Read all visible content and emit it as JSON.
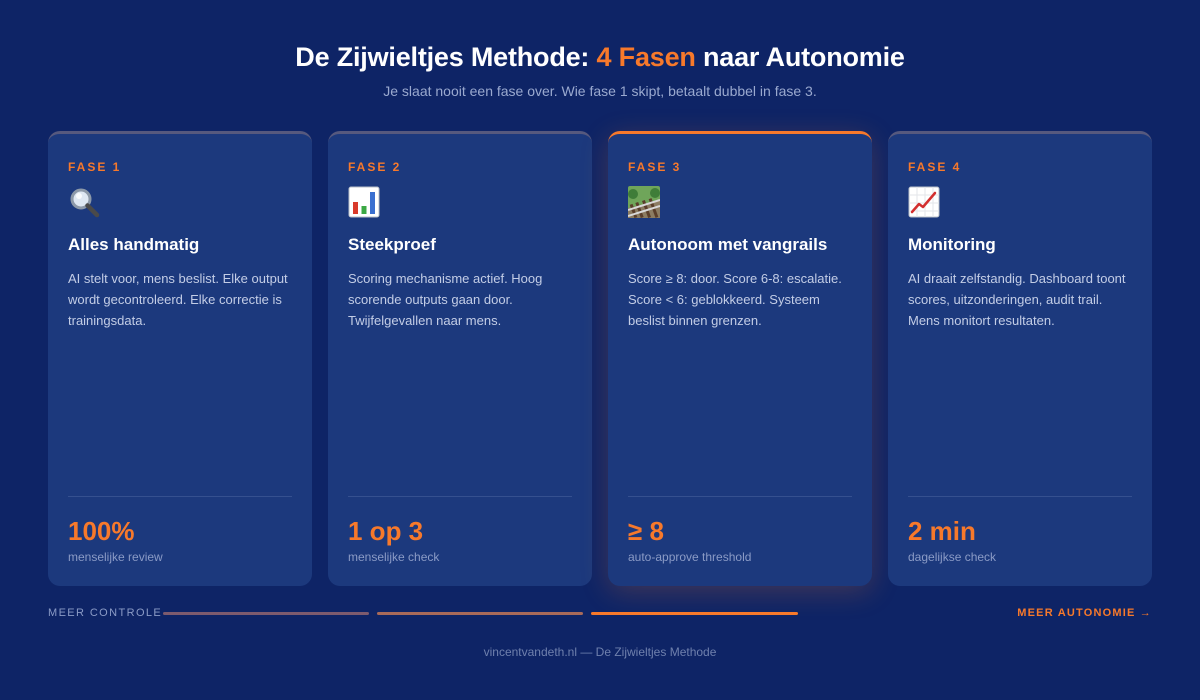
{
  "header": {
    "title_prefix": "De Zijwieltjes Methode: ",
    "title_accent": "4 Fasen",
    "title_suffix": " naar Autonomie",
    "subtitle": "Je slaat nooit een fase over. Wie fase 1 skipt, betaalt dubbel in fase 3."
  },
  "phases": [
    {
      "label": "FASE 1",
      "icon": "magnifying-glass-icon",
      "title": "Alles handmatig",
      "description": "AI stelt voor, mens beslist. Elke output wordt gecontroleerd. Elke correctie is trainingsdata.",
      "metric": "100%",
      "metric_label": "menselijke review"
    },
    {
      "label": "FASE 2",
      "icon": "bar-chart-icon",
      "title": "Steekproef",
      "description": "Scoring mechanisme actief. Hoog scorende outputs gaan door. Twijfelgevallen naar mens.",
      "metric": "1 op 3",
      "metric_label": "menselijke check"
    },
    {
      "label": "FASE 3",
      "icon": "railway-track-icon",
      "title": "Autonoom met vangrails",
      "description": "Score ≥ 8: door. Score 6-8: escalatie. Score < 6: geblokkeerd. Systeem beslist binnen grenzen.",
      "metric": "≥ 8",
      "metric_label": "auto-approve threshold"
    },
    {
      "label": "FASE 4",
      "icon": "chart-increasing-icon",
      "title": "Monitoring",
      "description": "AI draait zelfstandig. Dashboard toont scores, uitzonderingen, audit trail. Mens monitort resultaten.",
      "metric": "2 min",
      "metric_label": "dagelijkse check"
    }
  ],
  "progress": {
    "left_label": "MEER CONTROLE",
    "right_label": "MEER AUTONOMIE →"
  },
  "footer": {
    "text": "vincentvandeth.nl — De Zijwieltjes Methode"
  },
  "colors": {
    "background": "#0e2466",
    "card": "#1c397d",
    "accent": "#f7792b"
  }
}
